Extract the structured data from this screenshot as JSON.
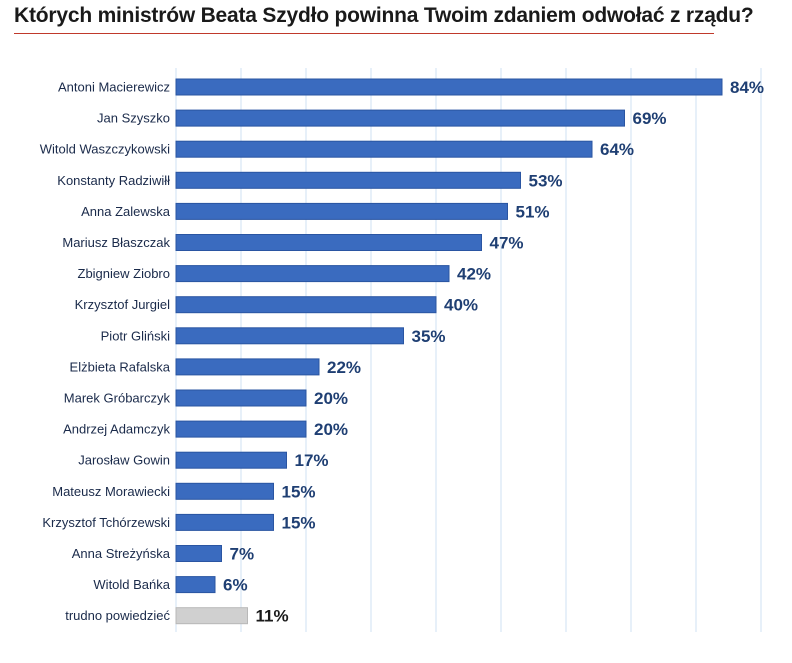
{
  "chart_data": {
    "type": "bar",
    "orientation": "horizontal",
    "title": "Których ministrów Beata Szydło powinna Twoim zdaniem odwołać z rządu?",
    "categories": [
      "Antoni Macierewicz",
      "Jan Szyszko",
      "Witold Waszczykowski",
      "Konstanty Radziwiłł",
      "Anna Zalewska",
      "Mariusz Błaszczak",
      "Zbigniew Ziobro",
      "Krzysztof Jurgiel",
      "Piotr Gliński",
      "Elżbieta Rafalska",
      "Marek Gróbarczyk",
      "Andrzej Adamczyk",
      "Jarosław Gowin",
      "Mateusz Morawiecki",
      "Krzysztof Tchórzewski",
      "Anna Streżyńska",
      "Witold Bańka",
      "trudno powiedzieć"
    ],
    "values": [
      84,
      69,
      64,
      53,
      51,
      47,
      42,
      40,
      35,
      22,
      20,
      20,
      17,
      15,
      15,
      7,
      6,
      11
    ],
    "value_labels": [
      "84%",
      "69%",
      "64%",
      "53%",
      "51%",
      "47%",
      "42%",
      "40%",
      "35%",
      "22%",
      "20%",
      "20%",
      "17%",
      "15%",
      "15%",
      "7%",
      "6%",
      "11%"
    ],
    "highlight_last": true,
    "xlim": [
      0,
      90
    ],
    "grid": true,
    "colors": {
      "bar": "#3a6bbf",
      "bar_edge": "#2a55a2",
      "bar_other": "#d0d0d0",
      "bar_other_edge": "#b8b8b8",
      "value_text": "#1f3f73",
      "value_text_other": "#1a1a1a",
      "grid": "#cfe0f3",
      "title_rule": "#c0392b"
    }
  }
}
